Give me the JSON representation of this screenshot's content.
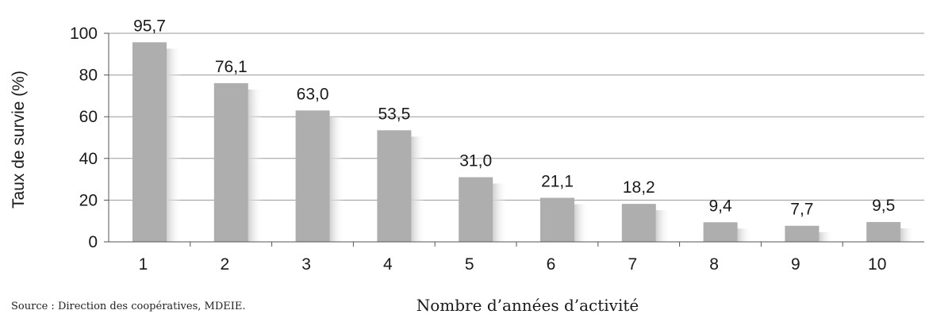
{
  "chart_data": {
    "type": "bar",
    "categories": [
      "1",
      "2",
      "3",
      "4",
      "5",
      "6",
      "7",
      "8",
      "9",
      "10"
    ],
    "values": [
      95.7,
      76.1,
      63.0,
      53.5,
      31.0,
      21.1,
      18.2,
      9.4,
      7.7,
      9.5
    ],
    "value_labels": [
      "95,7",
      "76,1",
      "63,0",
      "53,5",
      "31,0",
      "21,1",
      "18,2",
      "9,4",
      "7,7",
      "9,5"
    ],
    "title": "",
    "xlabel": "Nombre d’années d’activité",
    "ylabel": "Taux de survie (%)",
    "ylim": [
      0,
      100
    ],
    "yticks": [
      "0",
      "20",
      "40",
      "60",
      "80",
      "100"
    ],
    "grid": true,
    "legend": "none",
    "colors": {
      "bar": "#aeaeae",
      "shadow": "#d4d4d4",
      "grid": "#9a9a9a",
      "axis": "#555555"
    }
  },
  "source": "Source : Direction des coopératives, MDEIE."
}
